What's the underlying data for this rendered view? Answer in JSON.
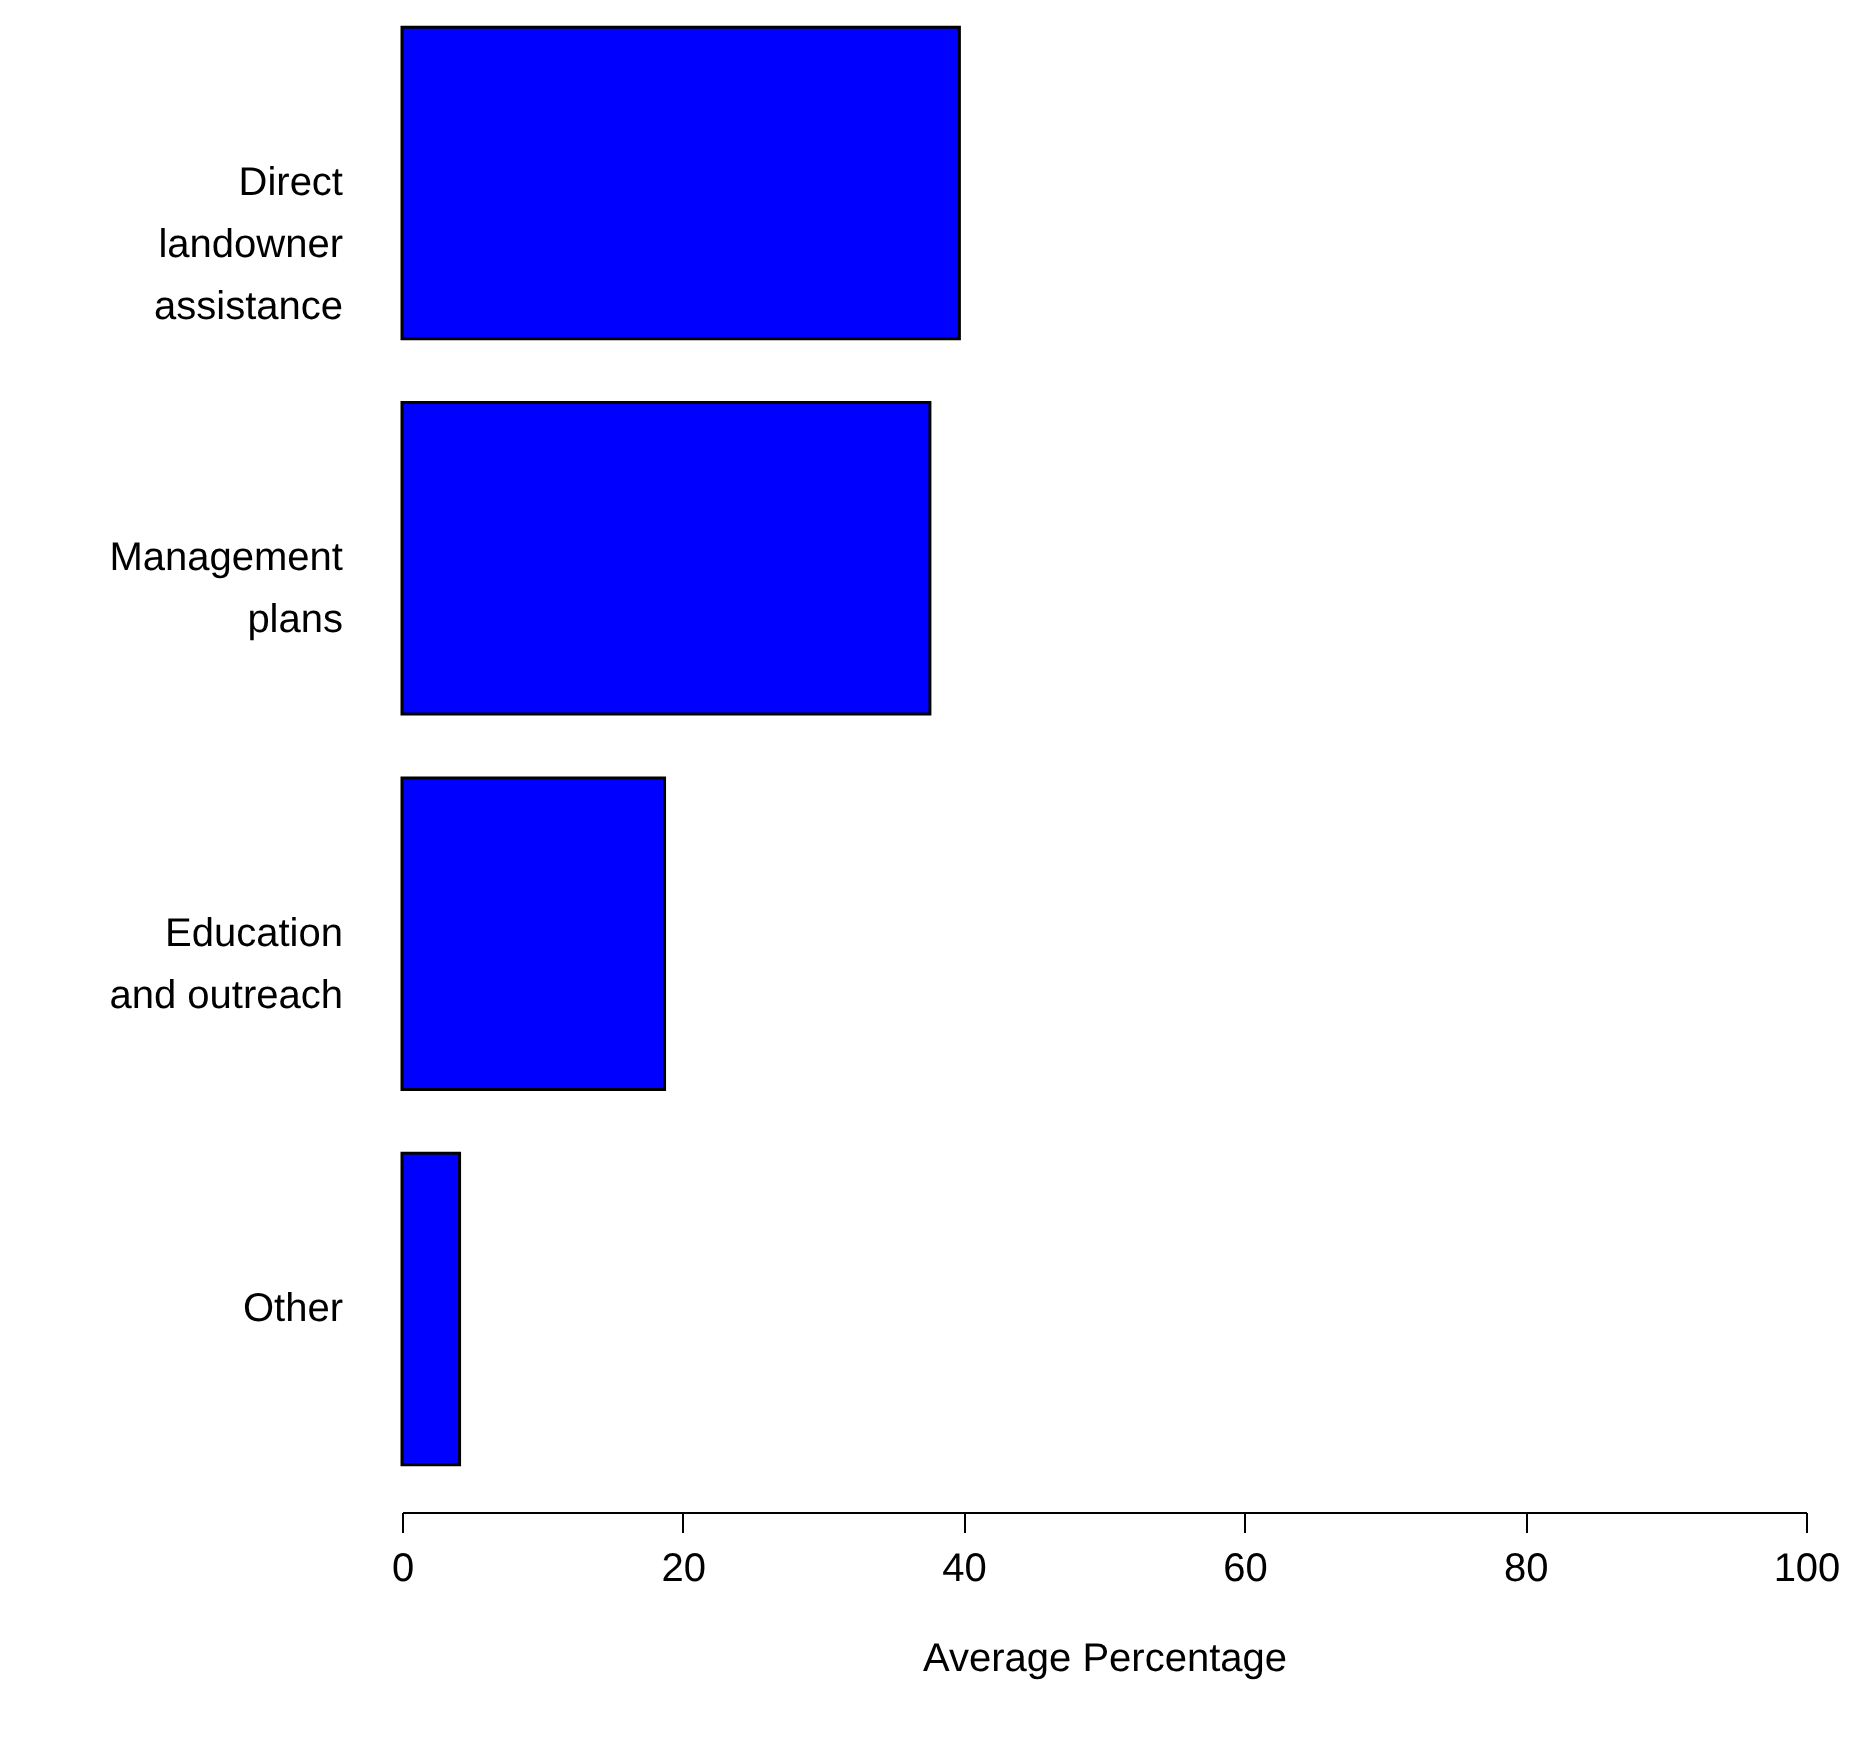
{
  "chart_data": {
    "type": "bar",
    "orientation": "horizontal",
    "xlabel": "Average Percentage",
    "categories": [
      "Direct landowner assistance",
      "Management plans",
      "Education and outreach",
      "Other"
    ],
    "values": [
      39.7,
      37.6,
      18.7,
      4.1
    ],
    "color": "#0000ff",
    "xlim": [
      0,
      100
    ],
    "xticks": [
      0,
      20,
      40,
      60,
      80,
      100
    ],
    "grid": false
  }
}
